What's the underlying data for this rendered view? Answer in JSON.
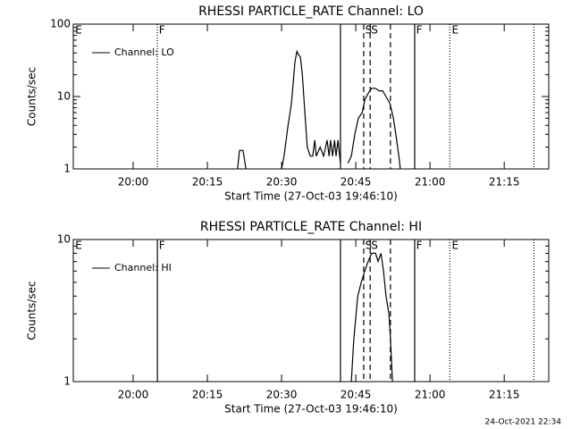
{
  "chart_data": [
    {
      "type": "line",
      "title": "RHESSI PARTICLE_RATE Channel: LO",
      "ylabel": "Counts/sec",
      "xlabel": "Start Time (27-Oct-03 19:46:10)",
      "log_y": true,
      "ylim": [
        1,
        100
      ],
      "yticks": [
        1,
        10,
        100
      ],
      "xlim": [
        -12.1,
        84.0
      ],
      "xticks": [
        {
          "value": 0,
          "label": "20:00"
        },
        {
          "value": 15,
          "label": "20:15"
        },
        {
          "value": 30,
          "label": "20:30"
        },
        {
          "value": 45,
          "label": "20:45"
        },
        {
          "value": 60,
          "label": "21:00"
        },
        {
          "value": 75,
          "label": "21:15"
        }
      ],
      "legend": "upper left",
      "series": [
        {
          "name": "Channel: LO",
          "color": "#000000",
          "x": [
            21.1,
            21.5,
            22.2,
            22.8,
            null,
            30.0,
            30.5,
            31.3,
            32.0,
            32.7,
            33.1,
            33.4,
            33.8,
            34.2,
            34.7,
            35.2,
            35.8,
            36.3,
            36.7,
            37.0,
            37.8,
            38.5,
            39.2,
            39.6,
            39.9,
            40.3,
            40.7,
            41.0,
            41.4,
            41.9,
            null,
            43.4,
            44.1,
            44.8,
            45.5,
            46.3,
            46.8,
            47.5,
            48.2,
            49.0,
            49.7,
            50.4,
            51.1,
            51.9,
            52.6,
            53.1,
            53.7,
            54.0
          ],
          "values": [
            1,
            1.8,
            1.8,
            1,
            null,
            1,
            1.5,
            4,
            8,
            30,
            42,
            38,
            35,
            20,
            6,
            2,
            1.5,
            1.5,
            2.5,
            1.5,
            2,
            1.5,
            2.5,
            1.5,
            2.5,
            1.5,
            2.5,
            1.5,
            2.5,
            1.2,
            null,
            1.2,
            1.5,
            3,
            5,
            6,
            9,
            11,
            13,
            13,
            12,
            12,
            10,
            8,
            5,
            3,
            1.5,
            1
          ]
        }
      ],
      "markers": [
        {
          "x": 4.9,
          "style": "dotted"
        },
        {
          "x": 41.9,
          "style": "solid"
        },
        {
          "x": 46.6,
          "style": "dashed"
        },
        {
          "x": 47.9,
          "style": "dashed"
        },
        {
          "x": 52.0,
          "style": "dashed"
        },
        {
          "x": 56.9,
          "style": "solid"
        },
        {
          "x": 64.0,
          "style": "dotted"
        },
        {
          "x": 81.0,
          "style": "dotted"
        }
      ],
      "flags": [
        {
          "x": -11.7,
          "label": "E"
        },
        {
          "x": 5.2,
          "label": "F"
        },
        {
          "x": 46.9,
          "label": "S"
        },
        {
          "x": 48.1,
          "label": "S"
        },
        {
          "x": 57.2,
          "label": "F"
        },
        {
          "x": 64.4,
          "label": "E"
        }
      ]
    },
    {
      "type": "line",
      "title": "RHESSI PARTICLE_RATE Channel: HI",
      "ylabel": "Counts/sec",
      "xlabel": "Start Time (27-Oct-03 19:46:10)",
      "log_y": true,
      "ylim": [
        1,
        10
      ],
      "yticks": [
        1,
        10
      ],
      "xlim": [
        -12.1,
        84.0
      ],
      "xticks": [
        {
          "value": 0,
          "label": "20:00"
        },
        {
          "value": 15,
          "label": "20:15"
        },
        {
          "value": 30,
          "label": "20:30"
        },
        {
          "value": 45,
          "label": "20:45"
        },
        {
          "value": 60,
          "label": "21:00"
        },
        {
          "value": 75,
          "label": "21:15"
        }
      ],
      "legend": "upper left",
      "series": [
        {
          "name": "Channel: HI",
          "color": "#000000",
          "x": [
            44.1,
            44.6,
            45.4,
            46.1,
            46.8,
            47.5,
            48.2,
            49.0,
            49.5,
            50.1,
            50.6,
            51.1,
            51.7,
            52.0,
            52.4
          ],
          "values": [
            1,
            2,
            4,
            5,
            6,
            7,
            8,
            8,
            7,
            8,
            6,
            4,
            3,
            2,
            1
          ]
        }
      ],
      "markers": [
        {
          "x": 4.9,
          "style": "solid"
        },
        {
          "x": 41.9,
          "style": "solid"
        },
        {
          "x": 46.6,
          "style": "dashed"
        },
        {
          "x": 47.9,
          "style": "dashed"
        },
        {
          "x": 52.0,
          "style": "dashed"
        },
        {
          "x": 56.9,
          "style": "solid"
        },
        {
          "x": 64.0,
          "style": "dotted"
        },
        {
          "x": 81.0,
          "style": "dotted"
        }
      ],
      "flags": [
        {
          "x": -11.7,
          "label": "E"
        },
        {
          "x": 5.2,
          "label": "F"
        },
        {
          "x": 46.9,
          "label": "S"
        },
        {
          "x": 48.1,
          "label": "S"
        },
        {
          "x": 57.2,
          "label": "F"
        },
        {
          "x": 64.4,
          "label": "E"
        }
      ]
    }
  ],
  "footer": "24-Oct-2021 22:34"
}
